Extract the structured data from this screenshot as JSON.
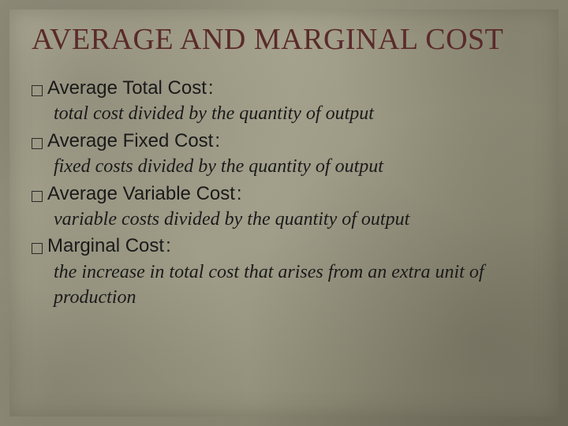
{
  "slide": {
    "title": "AVERAGE AND MARGINAL COST",
    "title_color": "#5a2a2a",
    "title_fontsize": 38,
    "background_base": "#9a9782",
    "text_color": "#1a1a1a",
    "content_top_margin": 24,
    "items": [
      {
        "term": "Average Total Cost",
        "definition": "total cost divided by the quantity of output"
      },
      {
        "term": "Average Fixed Cost",
        "definition": "fixed costs divided by the quantity of output"
      },
      {
        "term": "Average Variable Cost",
        "definition": "variable costs divided by the quantity of output"
      },
      {
        "term": "Marginal Cost",
        "definition": "the increase in total cost that arises from an extra unit of production"
      }
    ],
    "term_fontsize": 24,
    "definition_fontsize": 24,
    "definition_indent": 28,
    "line_height": 1.35,
    "bullet_size": 14
  }
}
